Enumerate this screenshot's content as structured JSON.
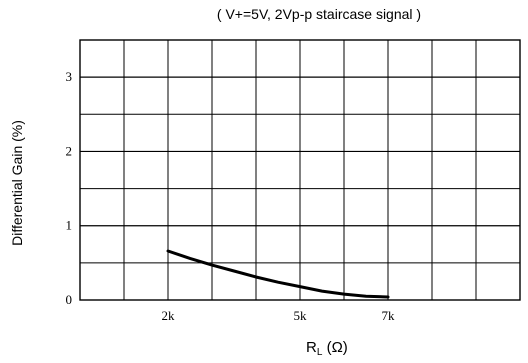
{
  "chart_data": {
    "type": "line",
    "title": "( V+=5V, 2Vp-p staircase signal )",
    "ylabel": "Differential Gain (%)",
    "xlabel_main": "R",
    "xlabel_sub": "L",
    "xlabel_unit": " (Ω)",
    "xlim": [
      0,
      10
    ],
    "ylim": [
      0,
      3.5
    ],
    "grid": true,
    "x_ticks": [
      {
        "value": 2,
        "label": "2k"
      },
      {
        "value": 5,
        "label": "5k"
      },
      {
        "value": 7,
        "label": "7k"
      }
    ],
    "y_ticks": [
      {
        "value": 0,
        "label": "0"
      },
      {
        "value": 1,
        "label": "1"
      },
      {
        "value": 2,
        "label": "2"
      },
      {
        "value": 3,
        "label": "3"
      }
    ],
    "series": [
      {
        "x": [
          2.0,
          2.5,
          3.0,
          3.5,
          4.0,
          4.5,
          5.0,
          5.5,
          6.0,
          6.5,
          7.0
        ],
        "y": [
          0.66,
          0.56,
          0.47,
          0.39,
          0.31,
          0.24,
          0.18,
          0.12,
          0.08,
          0.05,
          0.04
        ]
      }
    ]
  }
}
